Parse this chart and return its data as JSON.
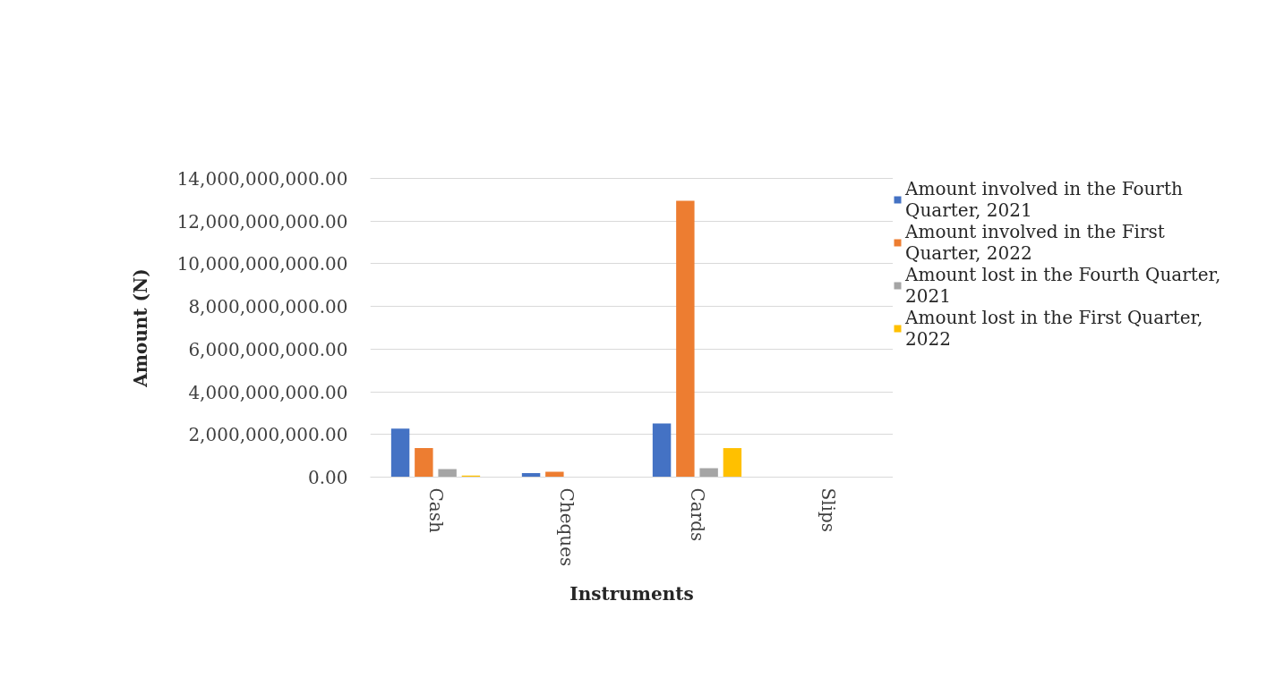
{
  "chart_data": {
    "type": "bar",
    "xlabel": "Instruments",
    "ylabel": "Amount (N)",
    "categories": [
      "Cash",
      "Cheques",
      "Cards",
      "Slips"
    ],
    "series": [
      {
        "name": "Amount involved in the Fourth Quarter, 2021",
        "color": "#4472c4",
        "values": [
          2270000000,
          190000000,
          2520000000,
          null
        ]
      },
      {
        "name": "Amount involved in the First Quarter, 2022",
        "color": "#ed7d31",
        "values": [
          1360000000,
          250000000,
          12950000000,
          null
        ]
      },
      {
        "name": "Amount lost in the Fourth Quarter, 2021",
        "color": "#a5a5a5",
        "values": [
          380000000,
          null,
          420000000,
          null
        ]
      },
      {
        "name": "Amount lost in the First Quarter, 2022",
        "color": "#ffc000",
        "values": [
          70000000,
          null,
          1360000000,
          null
        ]
      }
    ],
    "ylim": [
      0,
      14000000000
    ],
    "yticks": [
      {
        "value": 0,
        "label": "0.00"
      },
      {
        "value": 2000000000,
        "label": "2,000,000,000.00"
      },
      {
        "value": 4000000000,
        "label": "4,000,000,000.00"
      },
      {
        "value": 6000000000,
        "label": "6,000,000,000.00"
      },
      {
        "value": 8000000000,
        "label": "8,000,000,000.00"
      },
      {
        "value": 10000000000,
        "label": "10,000,000,000.00"
      },
      {
        "value": 12000000000,
        "label": "12,000,000,000.00"
      },
      {
        "value": 14000000000,
        "label": "14,000,000,000.00"
      }
    ],
    "grid": "y",
    "legend": "right"
  }
}
